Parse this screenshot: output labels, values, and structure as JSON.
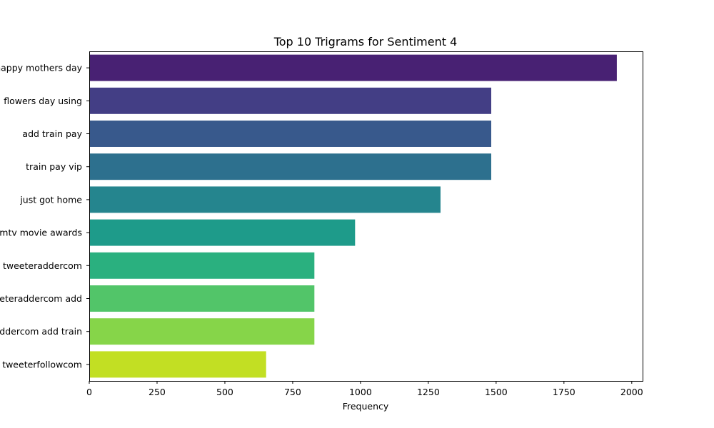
{
  "chart_data": {
    "type": "bar",
    "orientation": "horizontal",
    "title": "Top 10 Trigrams for Sentiment 4",
    "xlabel": "Frequency",
    "ylabel": "",
    "xlim": [
      0,
      2040
    ],
    "xticks": [
      0,
      250,
      500,
      750,
      1000,
      1250,
      1500,
      1750,
      2000
    ],
    "grid": false,
    "categories": [
      "happy mothers day",
      "flowers day using",
      "add train pay",
      "train pay vip",
      "just got home",
      "mtv movie awards",
      "tweeteraddercom",
      "tweeteraddercom add",
      "tweeteraddercom add train",
      "tweeterfollowcom"
    ],
    "values": [
      1945,
      1482,
      1482,
      1482,
      1295,
      980,
      830,
      830,
      830,
      652
    ],
    "colors": [
      "#482173",
      "#433e85",
      "#38598c",
      "#2d708e",
      "#25858e",
      "#1e9b8a",
      "#2ab07f",
      "#52c569",
      "#86d549",
      "#c2df23"
    ]
  }
}
